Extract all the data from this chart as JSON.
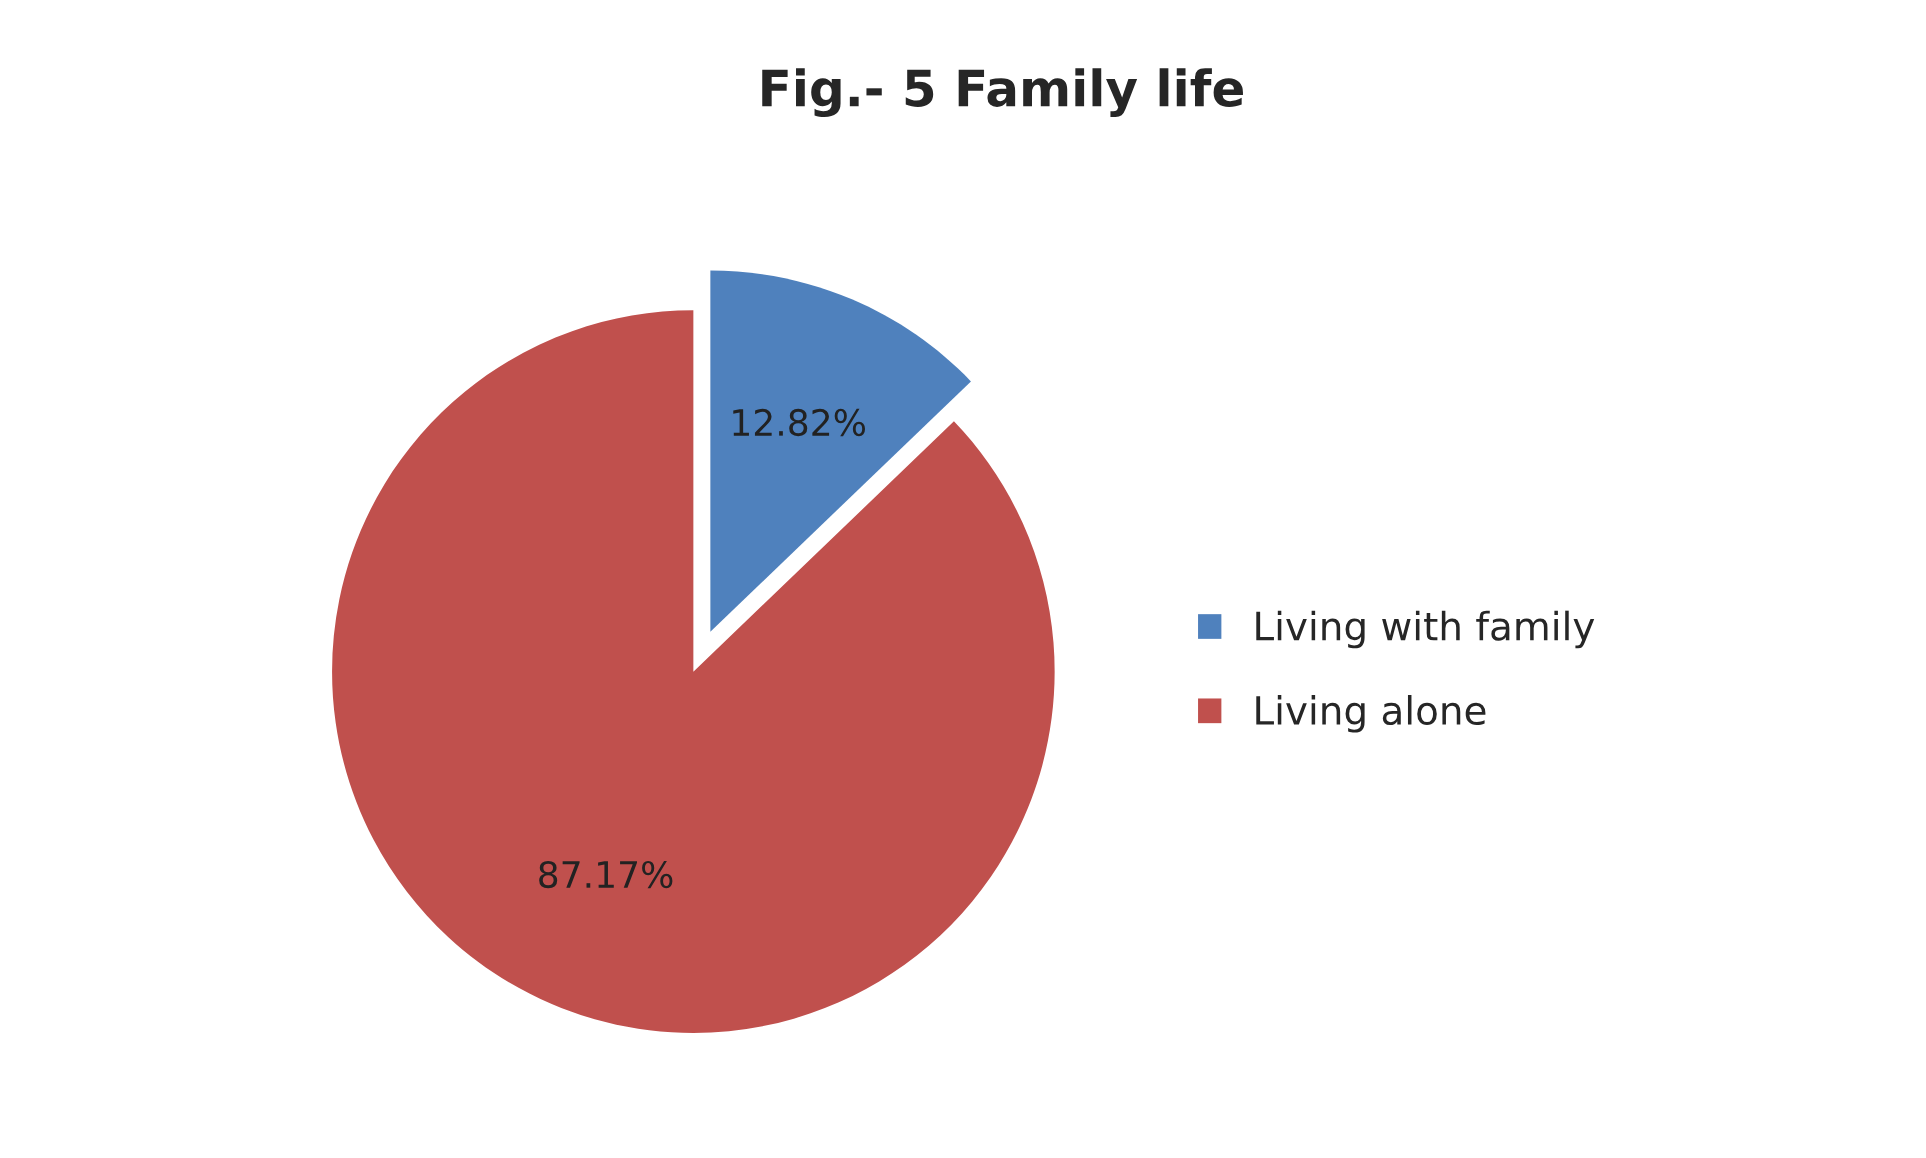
{
  "chart_data": {
    "type": "pie",
    "title": "Fig.- 5 Family life",
    "categories": [
      "Living with family",
      "Living alone"
    ],
    "values": [
      12.82,
      87.17
    ],
    "colors": [
      "#4f81bd",
      "#c0504d"
    ],
    "value_labels": [
      "12.82%",
      "87.17%"
    ],
    "legend": "right"
  }
}
